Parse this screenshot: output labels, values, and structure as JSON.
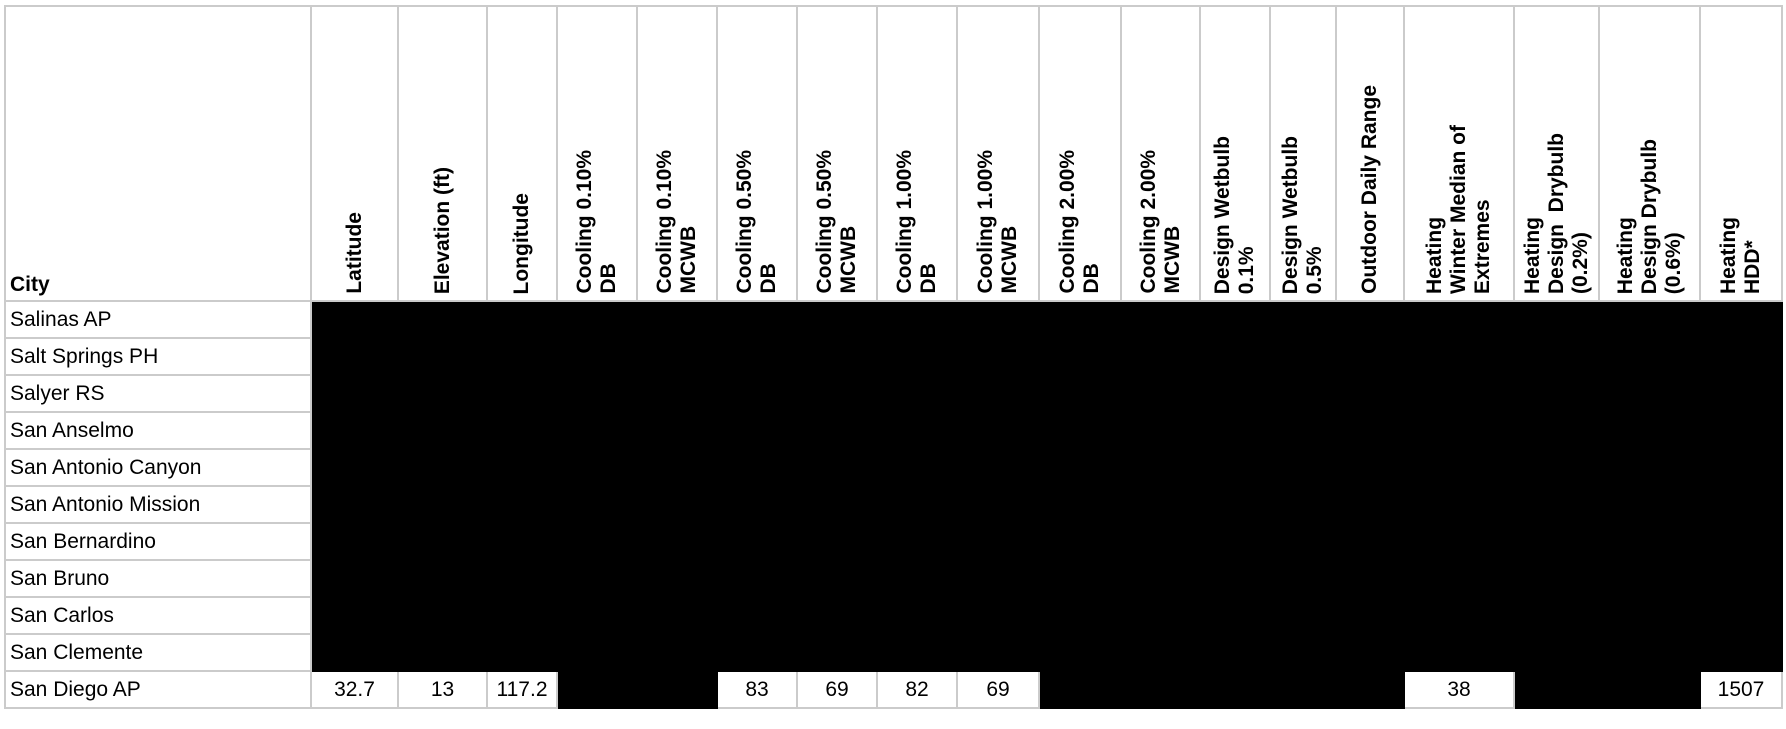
{
  "columns": [
    "City",
    "Latitude",
    "Elevation (ft)",
    "Longitude",
    "Cooling 0.10%\nDB",
    "Cooling 0.10%\nMCWB",
    "Cooling 0.50%\nDB",
    "Cooling 0.50%\nMCWB",
    "Cooling 1.00%\nDB",
    "Cooling 1.00%\nMCWB",
    "Cooling 2.00%\nDB",
    "Cooling 2.00%\nMCWB",
    "Design Wetbulb\n0.1%",
    "Design Wetbulb\n0.5%",
    "Outdoor Daily Range",
    "Heating\nWinter Median of\nExtremes",
    "Heating\nDesign  Drybulb\n(0.2%)",
    "Heating\nDesign Drybulb\n(0.6%)",
    "Heating\nHDD*"
  ],
  "rows": [
    {
      "city": "Salinas AP",
      "values": [
        null,
        null,
        null,
        null,
        null,
        null,
        null,
        null,
        null,
        null,
        null,
        null,
        null,
        null,
        null,
        null,
        null,
        null
      ]
    },
    {
      "city": "Salt Springs PH",
      "values": [
        null,
        null,
        null,
        null,
        null,
        null,
        null,
        null,
        null,
        null,
        null,
        null,
        null,
        null,
        null,
        null,
        null,
        null
      ]
    },
    {
      "city": "Salyer RS",
      "values": [
        null,
        null,
        null,
        null,
        null,
        null,
        null,
        null,
        null,
        null,
        null,
        null,
        null,
        null,
        null,
        null,
        null,
        null
      ]
    },
    {
      "city": "San Anselmo",
      "values": [
        null,
        null,
        null,
        null,
        null,
        null,
        null,
        null,
        null,
        null,
        null,
        null,
        null,
        null,
        null,
        null,
        null,
        null
      ]
    },
    {
      "city": "San Antonio Canyon",
      "values": [
        null,
        null,
        null,
        null,
        null,
        null,
        null,
        null,
        null,
        null,
        null,
        null,
        null,
        null,
        null,
        null,
        null,
        null
      ]
    },
    {
      "city": "San Antonio Mission",
      "values": [
        null,
        null,
        null,
        null,
        null,
        null,
        null,
        null,
        null,
        null,
        null,
        null,
        null,
        null,
        null,
        null,
        null,
        null
      ]
    },
    {
      "city": "San Bernardino",
      "values": [
        null,
        null,
        null,
        null,
        null,
        null,
        null,
        null,
        null,
        null,
        null,
        null,
        null,
        null,
        null,
        null,
        null,
        null
      ]
    },
    {
      "city": "San Bruno",
      "values": [
        null,
        null,
        null,
        null,
        null,
        null,
        null,
        null,
        null,
        null,
        null,
        null,
        null,
        null,
        null,
        null,
        null,
        null
      ]
    },
    {
      "city": "San Carlos",
      "values": [
        null,
        null,
        null,
        null,
        null,
        null,
        null,
        null,
        null,
        null,
        null,
        null,
        null,
        null,
        null,
        null,
        null,
        null
      ]
    },
    {
      "city": "San Clemente",
      "values": [
        null,
        null,
        null,
        null,
        null,
        null,
        null,
        null,
        null,
        null,
        null,
        null,
        null,
        null,
        null,
        null,
        null,
        null
      ]
    },
    {
      "city": "San Diego AP",
      "values": [
        "32.7",
        "13",
        "117.2",
        null,
        null,
        "83",
        "69",
        "82",
        "69",
        null,
        null,
        null,
        null,
        null,
        "38",
        null,
        null,
        "1507"
      ]
    }
  ],
  "redaction_color": "#000000",
  "grid_color": "#cbcbcb"
}
